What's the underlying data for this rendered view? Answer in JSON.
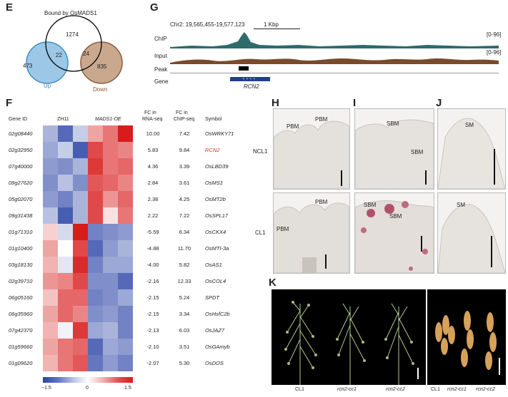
{
  "panel_E": {
    "label": "E",
    "title": "Bound by OsMADS1",
    "top_count": "1274",
    "left_count": "473",
    "right_count": "835",
    "up_overlap": "22",
    "down_overlap": "24",
    "up_label": "Up",
    "down_label": "Down",
    "colors": {
      "up": "#3b8fc4",
      "down": "#8a5a3c",
      "bound": "#000000"
    }
  },
  "panel_G": {
    "label": "G",
    "coords": "Chr2: 19,565,455-19,577,123",
    "scale_label": "1 Kbp",
    "tracks": [
      {
        "name": "ChIP",
        "range": "[0-96]",
        "color": "#2f6b6b"
      },
      {
        "name": "Input",
        "range": "[0-96]",
        "color": "#7a4a2a"
      },
      {
        "name": "Peak",
        "range": ""
      },
      {
        "name": "Gene",
        "range": ""
      }
    ],
    "gene_name": "RCN2"
  },
  "panel_F": {
    "label": "F",
    "col_headers": {
      "gene_id": "Gene ID",
      "zh11": "ZH11",
      "mads": "MADS1-OE",
      "fc_rna_1": "FC in",
      "fc_rna_2": "RNA-seq",
      "fc_chip_1": "FC in",
      "fc_chip_2": "ChIP-seq",
      "symbol": "Symbol"
    },
    "rows": [
      {
        "id": "02g08440",
        "rna": "10.00",
        "chip": "7.42",
        "sym": "OsWRKY71"
      },
      {
        "id": "02g32950",
        "rna": "5.83",
        "chip": "9.84",
        "sym": "RCN2"
      },
      {
        "id": "07g40000",
        "rna": "4.36",
        "chip": "3.39",
        "sym": "OsLBD39"
      },
      {
        "id": "09g27620",
        "rna": "2.84",
        "chip": "3.61",
        "sym": "OsMS1"
      },
      {
        "id": "05g02070",
        "rna": "2.38",
        "chip": "4.25",
        "sym": "OsMT2b"
      },
      {
        "id": "09g31438",
        "rna": "2.22",
        "chip": "7.22",
        "sym": "OsSPL17"
      },
      {
        "id": "01g71310",
        "rna": "-5.59",
        "chip": "6.34",
        "sym": "OsCKX4"
      },
      {
        "id": "01g10400",
        "rna": "-4.88",
        "chip": "11.70",
        "sym": "OsMTI-3a"
      },
      {
        "id": "03g18130",
        "rna": "-4.00",
        "chip": "5.82",
        "sym": "OsAS1"
      },
      {
        "id": "02g39710",
        "rna": "-2.16",
        "chip": "12.33",
        "sym": "OsCOL4"
      },
      {
        "id": "06g05160",
        "rna": "-2.15",
        "chip": "5.24",
        "sym": "SPDT"
      },
      {
        "id": "06g35960",
        "rna": "-2.15",
        "chip": "3.34",
        "sym": "OsHsfC2b"
      },
      {
        "id": "07g42370",
        "rna": "-2.13",
        "chip": "6.03",
        "sym": "OsJAZ7"
      },
      {
        "id": "01g59660",
        "rna": "-2.10",
        "chip": "3.51",
        "sym": "OsGAmyb"
      },
      {
        "id": "01g09620",
        "rna": "-2.07",
        "chip": "5.30",
        "sym": "OsDOS"
      }
    ],
    "highlight_symbol": "RCN2",
    "highlight_color": "#d23a2a",
    "heat": [
      [
        -0.6,
        -1.2,
        -0.4,
        0.6,
        0.9,
        1.5
      ],
      [
        -0.7,
        -0.4,
        -1.3,
        1.2,
        0.9,
        0.8
      ],
      [
        -0.8,
        -0.9,
        -0.6,
        1.3,
        0.9,
        1.0
      ],
      [
        -0.9,
        -0.5,
        -0.9,
        1.1,
        1.0,
        0.8
      ],
      [
        -0.8,
        -1.0,
        -0.6,
        1.2,
        0.7,
        1.0
      ],
      [
        -0.5,
        -1.3,
        -0.6,
        1.2,
        0.2,
        0.9
      ],
      [
        0.3,
        -0.3,
        1.5,
        -1.0,
        -0.9,
        -0.8
      ],
      [
        0.6,
        0.0,
        1.2,
        -1.2,
        -0.8,
        -0.6
      ],
      [
        0.5,
        -0.2,
        1.4,
        -1.0,
        -0.7,
        -0.7
      ],
      [
        0.7,
        0.8,
        1.2,
        -0.9,
        -0.9,
        -1.2
      ],
      [
        0.4,
        1.0,
        1.0,
        -1.0,
        -0.9,
        -0.7
      ],
      [
        0.6,
        1.0,
        0.8,
        -0.9,
        -0.8,
        -1.0
      ],
      [
        0.5,
        -0.1,
        1.3,
        -0.7,
        -0.6,
        -1.0
      ],
      [
        0.6,
        0.9,
        1.0,
        -1.2,
        -0.7,
        -0.8
      ],
      [
        0.5,
        0.9,
        1.1,
        -1.1,
        -0.8,
        -1.0
      ]
    ],
    "scale": {
      "min": "−1.5",
      "mid": "0",
      "max": "1.5"
    }
  },
  "panel_H": {
    "label": "H",
    "tags_top": [
      "PBM",
      "PBM"
    ],
    "tags_bottom": [
      "PBM",
      "PBM"
    ]
  },
  "panel_I": {
    "label": "I",
    "tags_top": [
      "SBM",
      "SBM"
    ],
    "tags_bottom": [
      "SBM",
      "SBM"
    ]
  },
  "panel_J": {
    "label": "J",
    "tags_top": [
      "SM"
    ],
    "tags_bottom": [
      "SM"
    ]
  },
  "row_labels": {
    "top": "NCL1",
    "bottom": "CL1"
  },
  "panel_K": {
    "label": "K",
    "left_labels": [
      "CL1",
      "rcn2-cc1",
      "rcn2-cc2"
    ],
    "right_labels": [
      "CL1",
      "rcn2-cc1",
      "rcn2-cc2"
    ]
  }
}
